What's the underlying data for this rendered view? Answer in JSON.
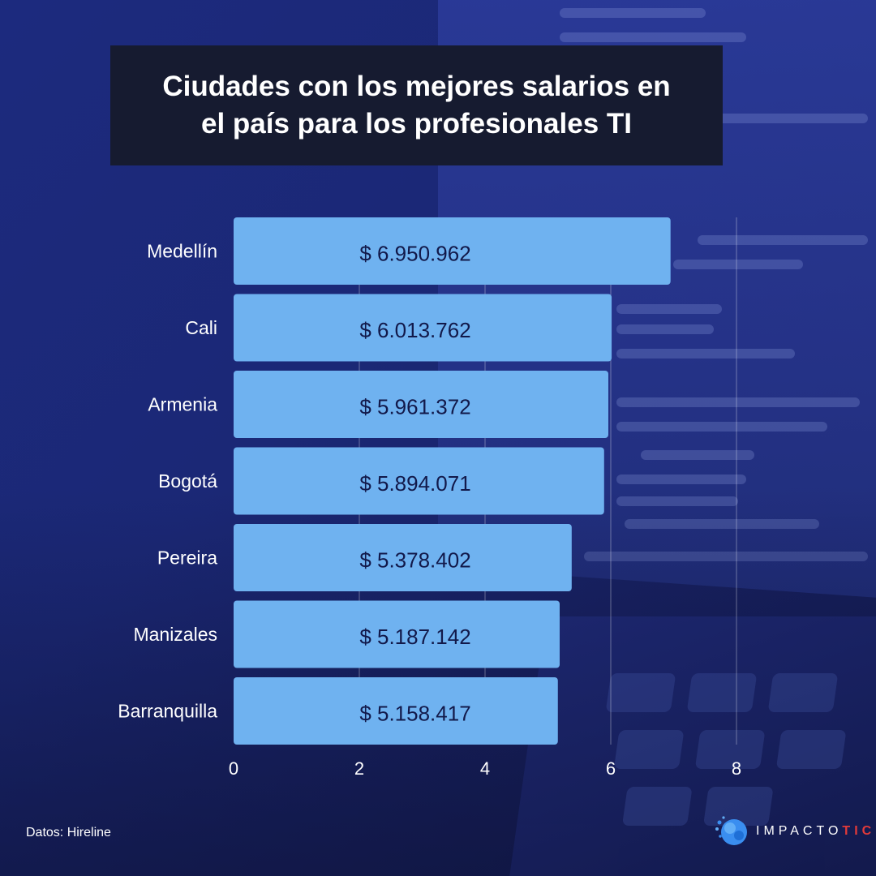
{
  "title": "Ciudades con los mejores salarios en el país para los profesionales TI",
  "source": "Datos: Hireline",
  "brand": {
    "name_main": "IMPACTO",
    "name_accent": "TIC",
    "icon": "brain-logo-icon",
    "accent_color": "#e23a3a"
  },
  "colors": {
    "bar": "#6fb2f0",
    "title_bg": "#161b30",
    "background": "#1b2876"
  },
  "chart_data": {
    "type": "bar",
    "orientation": "horizontal",
    "categories": [
      "Medellín",
      "Cali",
      "Armenia",
      "Bogotá",
      "Pereira",
      "Manizales",
      "Barranquilla"
    ],
    "values": [
      6950962,
      6013762,
      5961372,
      5894071,
      5378402,
      5187142,
      5158417
    ],
    "data_labels": [
      "$ 6.950.962",
      "$ 6.013.762",
      "$ 5.961.372",
      "$ 5.894.071",
      "$ 5.378.402",
      "$ 5.187.142",
      "$ 5.158.417"
    ],
    "xticks": [
      "0",
      "2",
      "4",
      "6",
      "8"
    ],
    "xlim": [
      0,
      8000000
    ],
    "grid": true,
    "xlabel": "",
    "ylabel": ""
  }
}
